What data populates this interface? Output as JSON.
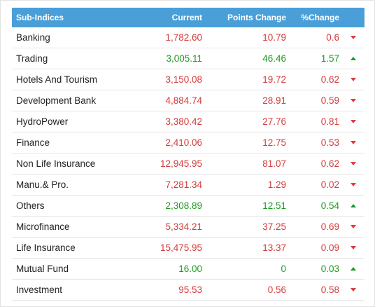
{
  "header": {
    "name": "Sub-Indices",
    "current": "Current",
    "points": "Points Change",
    "pct": "%Change"
  },
  "colors": {
    "header_bg": "#4a9fd8",
    "negative": "#d43b3b",
    "positive": "#1e9a1e"
  },
  "rows": [
    {
      "name": "Banking",
      "current": "1,782.60",
      "points": "10.79",
      "pct": "0.6",
      "direction": "down"
    },
    {
      "name": "Trading",
      "current": "3,005.11",
      "points": "46.46",
      "pct": "1.57",
      "direction": "up"
    },
    {
      "name": "Hotels And Tourism",
      "current": "3,150.08",
      "points": "19.72",
      "pct": "0.62",
      "direction": "down"
    },
    {
      "name": "Development Bank",
      "current": "4,884.74",
      "points": "28.91",
      "pct": "0.59",
      "direction": "down"
    },
    {
      "name": "HydroPower",
      "current": "3,380.42",
      "points": "27.76",
      "pct": "0.81",
      "direction": "down"
    },
    {
      "name": "Finance",
      "current": "2,410.06",
      "points": "12.75",
      "pct": "0.53",
      "direction": "down"
    },
    {
      "name": "Non Life Insurance",
      "current": "12,945.95",
      "points": "81.07",
      "pct": "0.62",
      "direction": "down"
    },
    {
      "name": "Manu.& Pro.",
      "current": "7,281.34",
      "points": "1.29",
      "pct": "0.02",
      "direction": "down"
    },
    {
      "name": "Others",
      "current": "2,308.89",
      "points": "12.51",
      "pct": "0.54",
      "direction": "up"
    },
    {
      "name": "Microfinance",
      "current": "5,334.21",
      "points": "37.25",
      "pct": "0.69",
      "direction": "down"
    },
    {
      "name": "Life Insurance",
      "current": "15,475.95",
      "points": "13.37",
      "pct": "0.09",
      "direction": "down"
    },
    {
      "name": "Mutual Fund",
      "current": "16.00",
      "points": "0",
      "pct": "0.03",
      "direction": "up"
    },
    {
      "name": "Investment",
      "current": "95.53",
      "points": "0.56",
      "pct": "0.58",
      "direction": "down"
    }
  ]
}
